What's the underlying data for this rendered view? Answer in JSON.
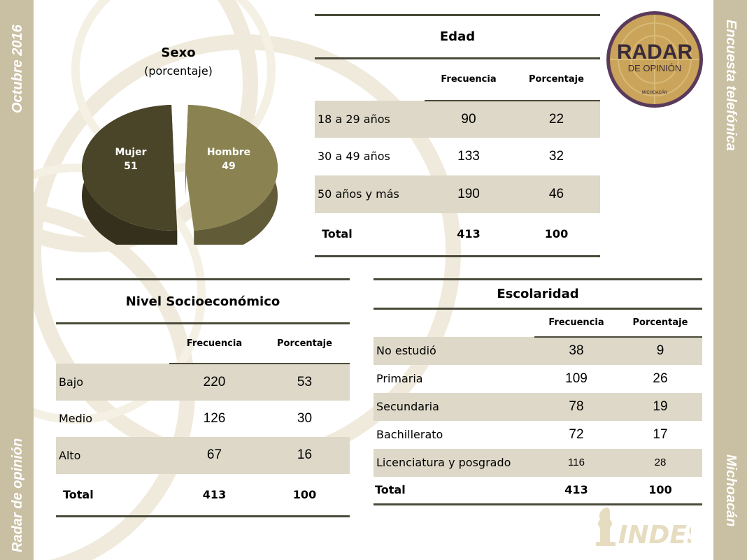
{
  "sidebar": {
    "left_top": "Octubre 2016",
    "left_bottom": "Radar de opinión",
    "right_top": "Encuesta telefónica",
    "right_bottom": "Michoacán"
  },
  "colors": {
    "sidebar": "#c9bfa3",
    "band": "#ddd8c8",
    "rule": "#4a4a3a",
    "mujer": "#4a4428",
    "hombre": "#8a8250"
  },
  "logo": {
    "line1": "RADAR",
    "line2": "DE OPINIÓN",
    "line3": "MICHOACÁN"
  },
  "indes": {
    "text": "INDES"
  },
  "chart_data": {
    "type": "pie",
    "title": "Sexo",
    "subtitle": "(porcentaje)",
    "slices": [
      {
        "label": "Mujer",
        "value": 51,
        "color": "#4a4428"
      },
      {
        "label": "Hombre",
        "value": 49,
        "color": "#8a8250"
      }
    ]
  },
  "edad": {
    "title": "Edad",
    "headers": [
      "Frecuencia",
      "Porcentaje"
    ],
    "rows": [
      {
        "label": "18 a 29 años",
        "freq": "90",
        "pct": "22"
      },
      {
        "label": "30 a 49 años",
        "freq": "133",
        "pct": "32"
      },
      {
        "label": "50 años y más",
        "freq": "190",
        "pct": "46"
      }
    ],
    "total": {
      "label": "Total",
      "freq": "413",
      "pct": "100"
    }
  },
  "nse": {
    "title": "Nivel Socioeconómico",
    "headers": [
      "Frecuencia",
      "Porcentaje"
    ],
    "rows": [
      {
        "label": "Bajo",
        "freq": "220",
        "pct": "53"
      },
      {
        "label": "Medio",
        "freq": "126",
        "pct": "30"
      },
      {
        "label": "Alto",
        "freq": "67",
        "pct": "16"
      }
    ],
    "total": {
      "label": "Total",
      "freq": "413",
      "pct": "100"
    }
  },
  "escolaridad": {
    "title": "Escolaridad",
    "headers": [
      "Frecuencia",
      "Porcentaje"
    ],
    "rows": [
      {
        "label": "No estudió",
        "freq": "38",
        "pct": "9"
      },
      {
        "label": "Primaria",
        "freq": "109",
        "pct": "26"
      },
      {
        "label": "Secundaria",
        "freq": "78",
        "pct": "19"
      },
      {
        "label": "Bachillerato",
        "freq": "72",
        "pct": "17"
      },
      {
        "label": "Licenciatura y posgrado",
        "freq": "116",
        "pct": "28"
      }
    ],
    "total": {
      "label": "Total",
      "freq": "413",
      "pct": "100"
    }
  }
}
